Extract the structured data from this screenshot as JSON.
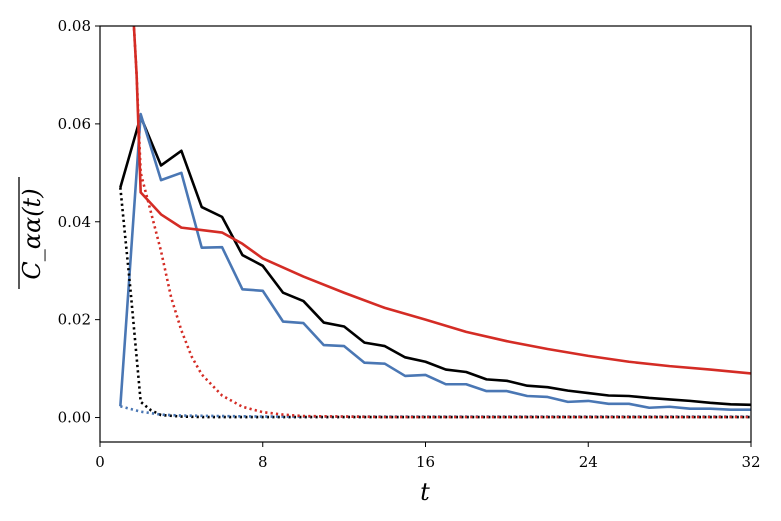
{
  "chart_data": {
    "type": "line",
    "title": "",
    "xlabel": "t",
    "ylabel": "C_αα(t)",
    "xlim": [
      0,
      32
    ],
    "ylim": [
      -0.005,
      0.08
    ],
    "xticks": [
      0,
      8,
      16,
      24,
      32
    ],
    "xtick_labels": [
      "0",
      "8",
      "16",
      "24",
      "32"
    ],
    "yticks": [
      0.0,
      0.02,
      0.04,
      0.06,
      0.08
    ],
    "ytick_labels": [
      "0.00",
      "0.02",
      "0.04",
      "0.06",
      "0.08"
    ],
    "grid": false,
    "series": [
      {
        "color": "#000000",
        "style": "solid",
        "x": [
          1,
          2,
          3,
          4,
          5,
          6,
          7,
          8,
          9,
          10,
          11,
          12,
          13,
          14,
          15,
          16,
          17,
          18,
          19,
          20,
          21,
          22,
          23,
          24,
          25,
          26,
          27,
          28,
          29,
          30,
          31,
          32
        ],
        "y": [
          0.047,
          0.0615,
          0.0515,
          0.0545,
          0.043,
          0.041,
          0.0332,
          0.031,
          0.0255,
          0.0238,
          0.0194,
          0.0186,
          0.0153,
          0.0146,
          0.0123,
          0.0114,
          0.0098,
          0.0093,
          0.0078,
          0.0075,
          0.0065,
          0.0062,
          0.0055,
          0.005,
          0.0045,
          0.0044,
          0.004,
          0.0037,
          0.0034,
          0.003,
          0.0027,
          0.0026
        ]
      },
      {
        "color": "#4a77b4",
        "style": "solid",
        "x": [
          1,
          2,
          3,
          4,
          5,
          6,
          7,
          8,
          9,
          10,
          11,
          12,
          13,
          14,
          15,
          16,
          17,
          18,
          19,
          20,
          21,
          22,
          23,
          24,
          25,
          26,
          27,
          28,
          29,
          30,
          31,
          32
        ],
        "y": [
          0.0023,
          0.062,
          0.0485,
          0.05,
          0.0347,
          0.0348,
          0.0262,
          0.0259,
          0.0196,
          0.0193,
          0.0148,
          0.0146,
          0.0112,
          0.011,
          0.0085,
          0.0087,
          0.0068,
          0.0068,
          0.0054,
          0.0054,
          0.0044,
          0.0042,
          0.0032,
          0.0034,
          0.0028,
          0.0028,
          0.002,
          0.0022,
          0.0018,
          0.0018,
          0.0016,
          0.0016
        ]
      },
      {
        "color": "#d42c25",
        "style": "solid",
        "x": [
          1.6,
          1.8,
          2,
          3,
          4,
          5,
          6,
          7,
          8,
          10,
          12,
          14,
          16,
          18,
          20,
          22,
          24,
          26,
          28,
          30,
          32
        ],
        "y": [
          0.085,
          0.07,
          0.046,
          0.0415,
          0.0388,
          0.0383,
          0.0378,
          0.0355,
          0.0325,
          0.0288,
          0.0255,
          0.0224,
          0.02,
          0.0175,
          0.0156,
          0.014,
          0.0126,
          0.0114,
          0.0105,
          0.0098,
          0.009
        ]
      },
      {
        "color": "#000000",
        "style": "dotted",
        "x": [
          1,
          1.5,
          2,
          2.5,
          3,
          4,
          5,
          6,
          8,
          12,
          16,
          20,
          24,
          28,
          32
        ],
        "y": [
          0.047,
          0.026,
          0.0032,
          0.0015,
          0.0005,
          0.0002,
          0.0001,
          0.0001,
          0.0001,
          0.0001,
          0.0001,
          0.0001,
          0.0001,
          0.0001,
          0.0001
        ]
      },
      {
        "color": "#4a77b4",
        "style": "dotted",
        "x": [
          1,
          2,
          3,
          4,
          6,
          8,
          12,
          16,
          20,
          24,
          28,
          32
        ],
        "y": [
          0.0023,
          0.0012,
          0.0006,
          0.0004,
          0.0003,
          0.0002,
          0.0002,
          0.0002,
          0.0002,
          0.0002,
          0.0002,
          0.0002
        ]
      },
      {
        "color": "#d42c25",
        "style": "dotted",
        "x": [
          1.6,
          1.8,
          2,
          2.5,
          3,
          3.5,
          4,
          4.5,
          5,
          6,
          7,
          8,
          9,
          10,
          12,
          14,
          16,
          20,
          24,
          28,
          32
        ],
        "y": [
          0.085,
          0.07,
          0.05,
          0.042,
          0.034,
          0.0245,
          0.0178,
          0.0125,
          0.0088,
          0.0045,
          0.0022,
          0.0011,
          0.0006,
          0.0003,
          0.0002,
          0.0001,
          0.0001,
          0.0001,
          0.0001,
          0.0001,
          0.0001
        ]
      }
    ]
  }
}
